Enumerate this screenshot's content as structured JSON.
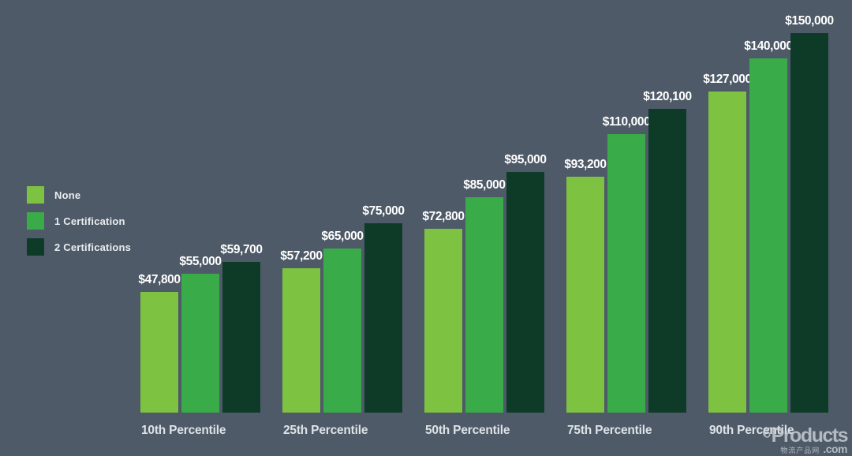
{
  "chart_data": {
    "type": "bar",
    "title": "",
    "xlabel": "",
    "ylabel": "",
    "ylim": [
      0,
      150000
    ],
    "grid": false,
    "legend_position": "left",
    "categories": [
      "10th Percentile",
      "25th Percentile",
      "50th Percentile",
      "75th Percentile",
      "90th Percentile"
    ],
    "series": [
      {
        "name": "None",
        "color": "#7ec242",
        "values": [
          47800,
          57200,
          72800,
          93200,
          127000
        ],
        "labels": [
          "$47,800",
          "$57,200",
          "$72,800",
          "$93,200",
          "$127,000"
        ]
      },
      {
        "name": "1 Certification",
        "color": "#3aab49",
        "values": [
          55000,
          65000,
          85000,
          110000,
          140000
        ],
        "labels": [
          "$55,000",
          "$65,000",
          "$85,000",
          "$110,000",
          "$140,000"
        ]
      },
      {
        "name": "2 Certifications",
        "color": "#0d3b28",
        "values": [
          59700,
          75000,
          95000,
          120100,
          150000
        ],
        "labels": [
          "$59,700",
          "$75,000",
          "$95,000",
          "$120,100",
          "$150,000"
        ]
      }
    ]
  },
  "colors": {
    "background": "#4e5a67",
    "value_label_text": "#ffffff",
    "axis_label_text": "#dde2e7",
    "legend_text": "#e9edf0"
  },
  "watermark": {
    "brand": "Products",
    "caption": "物流产品网",
    "tld": ".com"
  }
}
